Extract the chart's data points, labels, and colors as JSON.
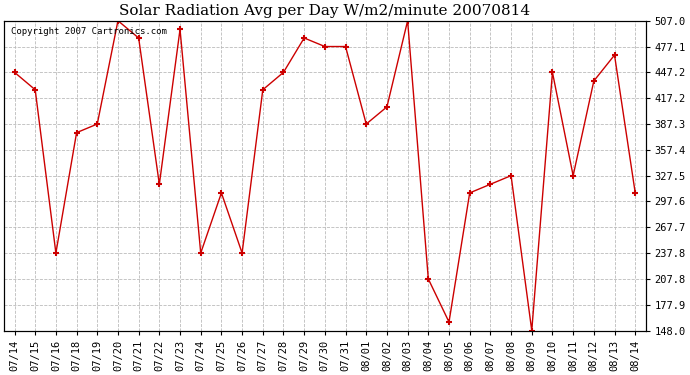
{
  "title": "Solar Radiation Avg per Day W/m2/minute 20070814",
  "copyright_text": "Copyright 2007 Cartronics.com",
  "labels": [
    "07/14",
    "07/15",
    "07/16",
    "07/18",
    "07/19",
    "07/20",
    "07/21",
    "07/22",
    "07/23",
    "07/24",
    "07/25",
    "07/26",
    "07/27",
    "07/28",
    "07/29",
    "07/30",
    "07/31",
    "08/01",
    "08/02",
    "08/03",
    "08/04",
    "08/05",
    "08/06",
    "08/07",
    "08/08",
    "08/09",
    "08/10",
    "08/11",
    "08/12",
    "08/13",
    "08/14"
  ],
  "values": [
    447.2,
    427.0,
    237.8,
    377.3,
    387.3,
    507.0,
    487.0,
    317.5,
    497.0,
    237.8,
    307.5,
    237.8,
    427.0,
    447.2,
    487.0,
    477.1,
    477.1,
    387.3,
    407.2,
    507.0,
    207.8,
    157.9,
    307.5,
    317.5,
    327.5,
    148.0,
    447.2,
    327.5,
    437.2,
    467.2,
    307.6
  ],
  "line_color": "#cc0000",
  "marker": "+",
  "marker_size": 5,
  "marker_linewidth": 1.5,
  "bg_color": "#ffffff",
  "plot_bg_color": "#ffffff",
  "grid_color": "#bbbbbb",
  "grid_style": "--",
  "ylim": [
    148.0,
    507.0
  ],
  "ytick_values": [
    148.0,
    177.9,
    207.8,
    237.8,
    267.7,
    297.6,
    327.5,
    357.4,
    387.3,
    417.2,
    447.2,
    477.1,
    507.0
  ],
  "title_fontsize": 11,
  "tick_fontsize": 7.5,
  "copyright_fontsize": 6.5,
  "figwidth": 6.9,
  "figheight": 3.75,
  "dpi": 100
}
